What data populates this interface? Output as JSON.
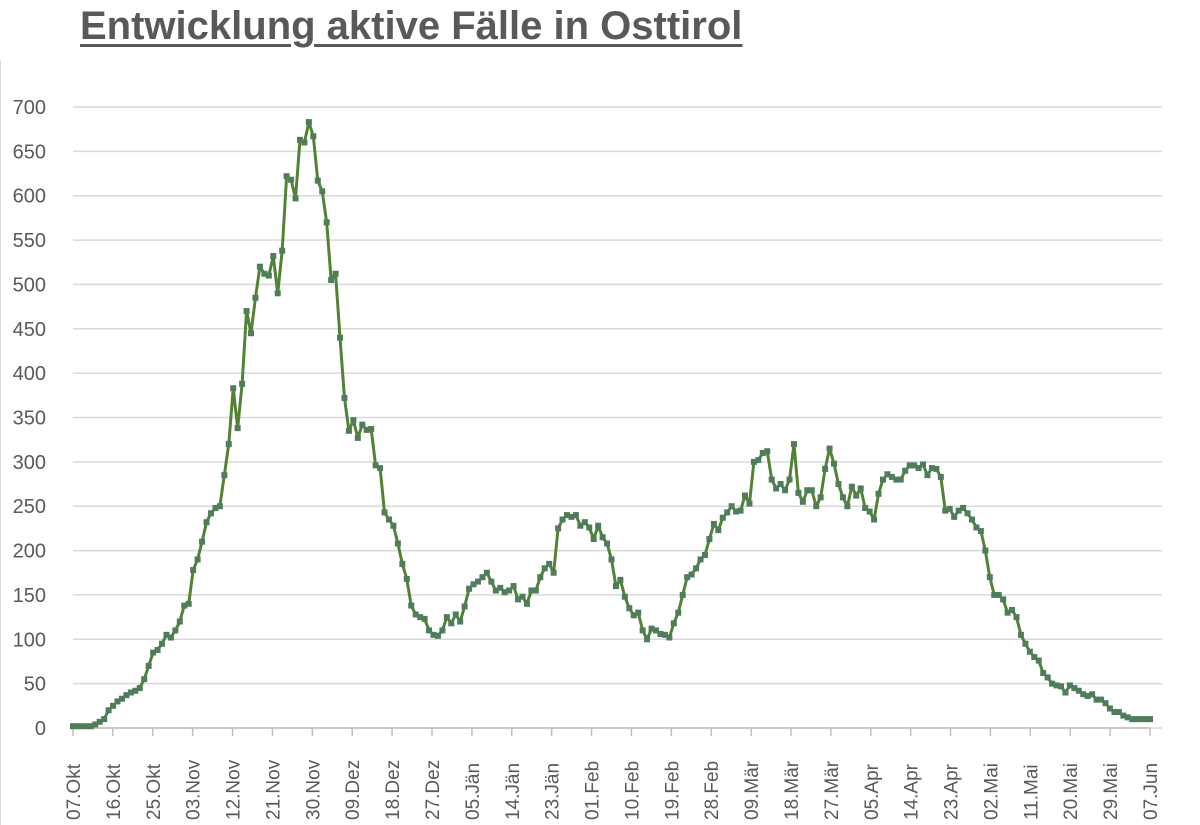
{
  "chart_data": {
    "type": "line",
    "title": "Entwicklung aktive Fälle in Osttirol",
    "xlabel": "",
    "ylabel": "",
    "ylim": [
      0,
      700
    ],
    "yticks": [
      0,
      50,
      100,
      150,
      200,
      250,
      300,
      350,
      400,
      450,
      500,
      550,
      600,
      650,
      700
    ],
    "grid": true,
    "legend": "none",
    "x_tick_labels": [
      "07.Okt",
      "16.Okt",
      "25.Okt",
      "03.Nov",
      "12.Nov",
      "21.Nov",
      "30.Nov",
      "09.Dez",
      "18.Dez",
      "27.Dez",
      "05.Jän",
      "14.Jän",
      "23.Jän",
      "01.Feb",
      "10.Feb",
      "19.Feb",
      "28.Feb",
      "09.Mär",
      "18.Mär",
      "27.Mär",
      "05.Apr",
      "14.Apr",
      "23.Apr",
      "02.Mai",
      "11.Mai",
      "20.Mai",
      "29.Mai",
      "07.Jun"
    ],
    "x_range": [
      "07.Okt",
      "07.Jun"
    ],
    "series": [
      {
        "color": "#548235",
        "marker_color": "#4f7d5c",
        "values": [
          2,
          2,
          2,
          2,
          2,
          4,
          7,
          10,
          20,
          25,
          30,
          33,
          37,
          40,
          42,
          45,
          55,
          70,
          85,
          88,
          95,
          105,
          102,
          110,
          120,
          138,
          140,
          178,
          190,
          210,
          232,
          242,
          248,
          250,
          285,
          320,
          383,
          338,
          388,
          470,
          445,
          485,
          520,
          512,
          510,
          532,
          490,
          538,
          622,
          618,
          597,
          663,
          660,
          683,
          667,
          617,
          605,
          570,
          505,
          512,
          440,
          372,
          335,
          347,
          327,
          342,
          336,
          337,
          296,
          293,
          243,
          235,
          228,
          208,
          185,
          168,
          138,
          128,
          125,
          123,
          110,
          105,
          104,
          110,
          125,
          118,
          128,
          120,
          137,
          157,
          162,
          165,
          170,
          175,
          165,
          155,
          158,
          153,
          155,
          160,
          145,
          148,
          140,
          155,
          155,
          170,
          180,
          185,
          175,
          225,
          235,
          240,
          238,
          240,
          228,
          232,
          226,
          213,
          228,
          215,
          208,
          190,
          160,
          167,
          148,
          135,
          127,
          130,
          110,
          100,
          112,
          110,
          106,
          105,
          102,
          118,
          130,
          150,
          170,
          173,
          180,
          190,
          195,
          213,
          230,
          223,
          237,
          243,
          250,
          244,
          245,
          262,
          253,
          300,
          302,
          310,
          312,
          280,
          270,
          275,
          268,
          280,
          320,
          265,
          255,
          268,
          268,
          250,
          260,
          292,
          315,
          298,
          275,
          260,
          250,
          272,
          262,
          270,
          248,
          244,
          235,
          264,
          280,
          286,
          283,
          280,
          280,
          290,
          296,
          296,
          293,
          297,
          285,
          293,
          292,
          283,
          245,
          247,
          238,
          245,
          248,
          242,
          235,
          226,
          222,
          200,
          170,
          150,
          150,
          145,
          130,
          133,
          125,
          105,
          95,
          86,
          80,
          76,
          62,
          57,
          50,
          48,
          47,
          40,
          48,
          45,
          42,
          38,
          36,
          38,
          32,
          32,
          28,
          22,
          18,
          18,
          14,
          12,
          10,
          10,
          10,
          10,
          10
        ]
      }
    ]
  }
}
